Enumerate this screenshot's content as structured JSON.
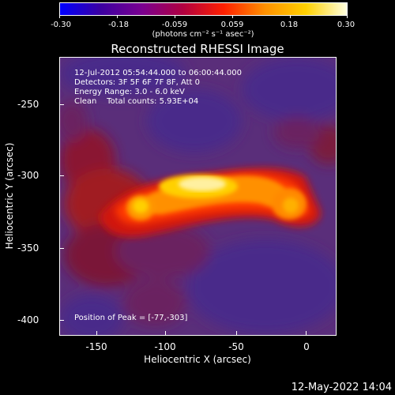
{
  "colorbar": {
    "ticks": [
      "-0.30",
      "-0.18",
      "-0.059",
      "0.059",
      "0.18",
      "0.30"
    ],
    "units": "(photons cm⁻² s⁻¹ asec⁻²)",
    "colors": [
      "#0000ff",
      "#3c00a0",
      "#7a0090",
      "#b00040",
      "#ff2000",
      "#ff9000",
      "#ffd000",
      "#ffffe0"
    ]
  },
  "title": "Reconstructed RHESSI Image",
  "info": {
    "line1": "12-Jul-2012 05:54:44.000 to 06:00:44.000",
    "line2": "Detectors: 3F 5F 6F 7F 8F, Att 0",
    "line3": "Energy Range: 3.0 - 6.0 keV",
    "line4": "Clean    Total counts: 5.93E+04",
    "peak": "Position of Peak = [-77,-303]"
  },
  "axes": {
    "xlabel": "Heliocentric X (arcsec)",
    "ylabel": "Heliocentric Y (arcsec)",
    "xticks": [
      "-150",
      "-100",
      "-50",
      "0"
    ],
    "yticks": [
      "-250",
      "-300",
      "-350",
      "-400"
    ]
  },
  "footer": {
    "date": "12-May-2022 14:04"
  }
}
